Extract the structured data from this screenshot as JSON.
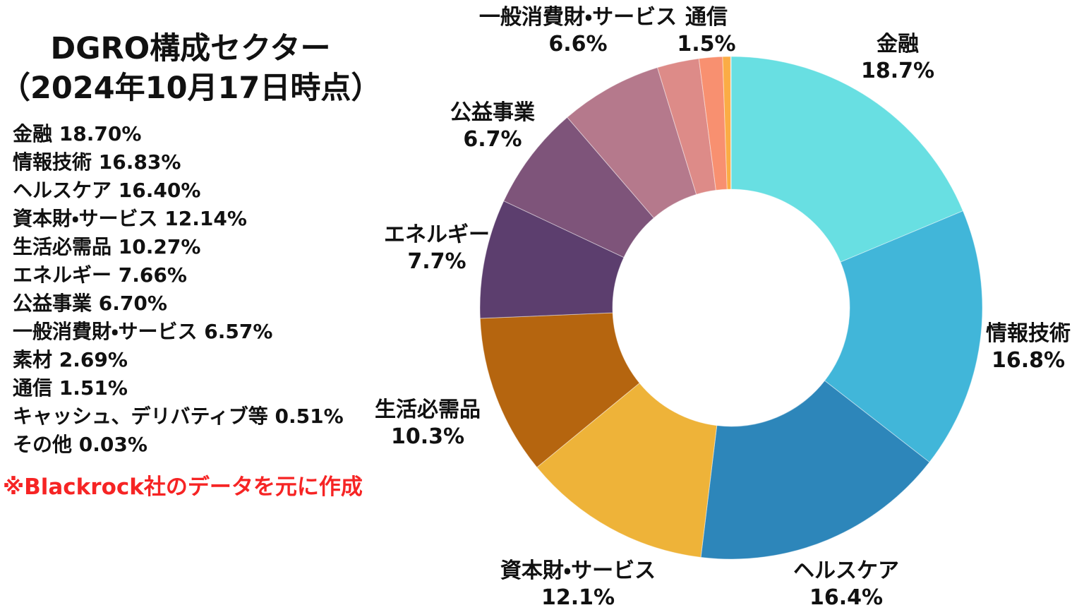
{
  "title": {
    "line1": "DGRO構成セクター",
    "line2": "（2024年10月17日時点）"
  },
  "source_note": {
    "text": "※Blackrock社のデータを元に作成",
    "color": "#f62424"
  },
  "text_color": "#111111",
  "background_color": "#ffffff",
  "legend": {
    "items": [
      {
        "name": "金融",
        "value": "18.70%"
      },
      {
        "name": "情報技術",
        "value": "16.83%"
      },
      {
        "name": "ヘルスケア",
        "value": "16.40%"
      },
      {
        "name": "資本財・サービス",
        "value": "12.14%"
      },
      {
        "name": "生活必需品",
        "value": "10.27%"
      },
      {
        "name": "エネルギー",
        "value": "7.66%"
      },
      {
        "name": "公益事業",
        "value": "6.70%"
      },
      {
        "name": "一般消費財・サービス",
        "value": "6.57%"
      },
      {
        "name": "素材",
        "value": "2.69%"
      },
      {
        "name": "通信",
        "value": "1.51%"
      },
      {
        "name": "キャッシュ、デリバティブ等",
        "value": "0.51%"
      },
      {
        "name": "その他",
        "value": "0.03%"
      }
    ]
  },
  "chart_data": {
    "type": "pie",
    "subtype": "donut",
    "title": "DGRO構成セクター（2024年10月17日時点）",
    "start_angle_deg": 0,
    "direction": "clockwise",
    "inner_radius_ratio": 0.47,
    "slices": [
      {
        "name": "金融",
        "value": 18.7,
        "color": "#68dfe2",
        "show_label": true,
        "label_value": "18.7%"
      },
      {
        "name": "情報技術",
        "value": 16.83,
        "color": "#41b6d9",
        "show_label": true,
        "label_value": "16.8%"
      },
      {
        "name": "ヘルスケア",
        "value": 16.4,
        "color": "#2d86ba",
        "show_label": true,
        "label_value": "16.4%"
      },
      {
        "name": "資本財・サービス",
        "value": 12.14,
        "color": "#eeb339",
        "show_label": true,
        "label_value": "12.1%",
        "label_r": 450
      },
      {
        "name": "生活必需品",
        "value": 10.27,
        "color": "#b5650f",
        "show_label": true,
        "label_value": "10.3%",
        "label_r": 460
      },
      {
        "name": "エネルギー",
        "value": 7.66,
        "color": "#5c3e6e",
        "show_label": true,
        "label_value": "7.7%"
      },
      {
        "name": "公益事業",
        "value": 6.7,
        "color": "#7e547a",
        "show_label": true,
        "label_value": "6.7%"
      },
      {
        "name": "一般消費財・サービス",
        "value": 6.57,
        "color": "#b5798c",
        "show_label": true,
        "label_value": "6.6%",
        "label_r": 450
      },
      {
        "name": "素材",
        "value": 2.69,
        "color": "#dd8b88",
        "show_label": false,
        "label_value": "2.7%"
      },
      {
        "name": "通信",
        "value": 1.51,
        "color": "#f89070",
        "show_label": true,
        "label_value": "1.5%",
        "label_r": 430
      },
      {
        "name": "キャッシュ、デリバティブ等",
        "value": 0.51,
        "color": "#fbac45",
        "show_label": false,
        "label_value": "0.5%"
      },
      {
        "name": "その他",
        "value": 0.03,
        "color": "#d9d9d9",
        "show_label": false,
        "label_value": "0.0%"
      }
    ]
  }
}
